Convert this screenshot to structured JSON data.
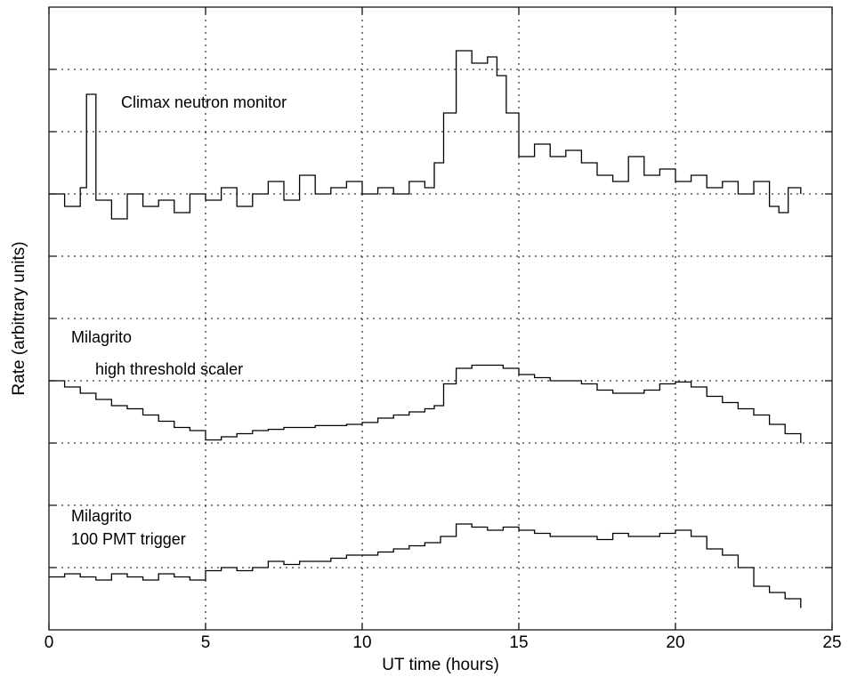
{
  "chart_data": {
    "type": "line",
    "xlabel": "UT time (hours)",
    "ylabel": "Rate (arbitrary units)",
    "xlim": [
      0,
      25
    ],
    "x_ticks": [
      0,
      5,
      10,
      15,
      20,
      25
    ],
    "ylim": [
      0,
      10
    ],
    "y_tick_positions": [
      1,
      2,
      3,
      4,
      5,
      6,
      7,
      8,
      9
    ],
    "y_tick_labels_shown": false,
    "grid": true,
    "annotations": [
      "Climax neutron monitor",
      "Milagrito",
      "high threshold scaler",
      "Milagrito",
      "100 PMT trigger"
    ],
    "series": [
      {
        "x": [
          0,
          0.5,
          1,
          1.2,
          1.5,
          2,
          2.5,
          3,
          3.5,
          4,
          4.5,
          5,
          5.5,
          6,
          6.5,
          7,
          7.5,
          8,
          8.5,
          9,
          9.5,
          10,
          10.5,
          11,
          11.5,
          12,
          12.3,
          12.6,
          13,
          13.5,
          14,
          14.3,
          14.6,
          15,
          15.5,
          16,
          16.5,
          17,
          17.5,
          18,
          18.5,
          19,
          19.5,
          20,
          20.5,
          21,
          21.5,
          22,
          22.5,
          23,
          23.3,
          23.6,
          24
        ],
        "values": [
          7.0,
          6.8,
          7.1,
          8.6,
          6.9,
          6.6,
          7.0,
          6.8,
          6.9,
          6.7,
          7.0,
          6.9,
          7.1,
          6.8,
          7.0,
          7.2,
          6.9,
          7.3,
          7.0,
          7.1,
          7.2,
          7.0,
          7.1,
          7.0,
          7.2,
          7.1,
          7.5,
          8.3,
          9.3,
          9.1,
          9.2,
          8.9,
          8.3,
          7.6,
          7.8,
          7.6,
          7.7,
          7.5,
          7.3,
          7.2,
          7.6,
          7.3,
          7.4,
          7.2,
          7.3,
          7.1,
          7.2,
          7.0,
          7.2,
          6.8,
          6.7,
          7.1,
          7.0
        ]
      },
      {
        "x": [
          0,
          0.5,
          1,
          1.5,
          2,
          2.5,
          3,
          3.5,
          4,
          4.5,
          5,
          5.5,
          6,
          6.5,
          7,
          7.5,
          8,
          8.5,
          9,
          9.5,
          10,
          10.5,
          11,
          11.5,
          12,
          12.3,
          12.6,
          13,
          13.5,
          14,
          14.5,
          15,
          15.5,
          16,
          16.5,
          17,
          17.5,
          18,
          18.5,
          19,
          19.5,
          20,
          20.5,
          21,
          21.5,
          22,
          22.5,
          23,
          23.5,
          24
        ],
        "values": [
          4.0,
          3.9,
          3.8,
          3.7,
          3.6,
          3.55,
          3.45,
          3.35,
          3.25,
          3.2,
          3.05,
          3.1,
          3.15,
          3.2,
          3.22,
          3.25,
          3.25,
          3.28,
          3.28,
          3.3,
          3.33,
          3.4,
          3.45,
          3.5,
          3.55,
          3.6,
          3.95,
          4.2,
          4.25,
          4.25,
          4.2,
          4.1,
          4.05,
          4.0,
          4.0,
          3.95,
          3.85,
          3.8,
          3.8,
          3.85,
          3.95,
          3.98,
          3.9,
          3.75,
          3.65,
          3.55,
          3.45,
          3.3,
          3.15,
          3.0
        ]
      },
      {
        "x": [
          0,
          0.5,
          1,
          1.5,
          2,
          2.5,
          3,
          3.5,
          4,
          4.5,
          5,
          5.5,
          6,
          6.5,
          7,
          7.5,
          8,
          8.5,
          9,
          9.5,
          10,
          10.5,
          11,
          11.5,
          12,
          12.5,
          13,
          13.5,
          14,
          14.5,
          15,
          15.5,
          16,
          16.5,
          17,
          17.5,
          18,
          18.5,
          19,
          19.5,
          20,
          20.5,
          21,
          21.5,
          22,
          22.5,
          23,
          23.5,
          24
        ],
        "values": [
          0.85,
          0.9,
          0.85,
          0.8,
          0.9,
          0.85,
          0.8,
          0.9,
          0.85,
          0.8,
          0.95,
          1.0,
          0.95,
          1.0,
          1.1,
          1.05,
          1.1,
          1.1,
          1.15,
          1.2,
          1.2,
          1.25,
          1.3,
          1.35,
          1.4,
          1.5,
          1.7,
          1.65,
          1.6,
          1.65,
          1.6,
          1.55,
          1.5,
          1.5,
          1.5,
          1.45,
          1.55,
          1.5,
          1.5,
          1.55,
          1.6,
          1.5,
          1.3,
          1.2,
          1.0,
          0.7,
          0.6,
          0.5,
          0.35
        ]
      }
    ]
  }
}
